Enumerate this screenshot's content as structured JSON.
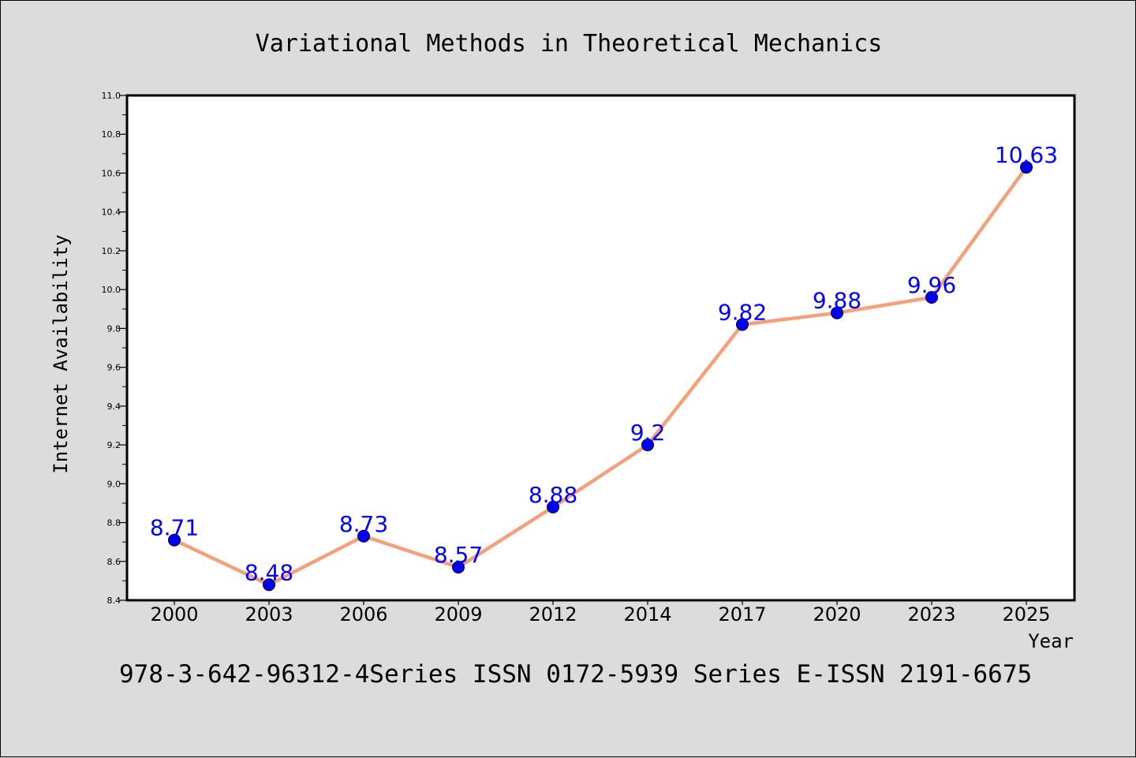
{
  "chart_data": {
    "type": "line",
    "title": "Variational Methods in Theoretical Mechanics",
    "xlabel": "Year",
    "ylabel": "Internet Availability",
    "categories": [
      "2000",
      "2003",
      "2006",
      "2009",
      "2012",
      "2014",
      "2017",
      "2020",
      "2023",
      "2025"
    ],
    "series": [
      {
        "values": [
          8.71,
          8.48,
          8.73,
          8.57,
          8.88,
          9.2,
          9.82,
          9.88,
          9.96,
          10.63
        ]
      }
    ],
    "data_labels": [
      "8.71",
      "8.48",
      "8.73",
      "8.57",
      "8.88",
      "9.2",
      "9.82",
      "9.88",
      "9.96",
      "10.63"
    ],
    "ylim": [
      8.4,
      11.0
    ],
    "ytick_labels": [
      "8.4",
      "8.6",
      "8.8",
      "9.0",
      "9.2",
      "9.4",
      "9.6",
      "9.8",
      "10.0",
      "10.2",
      "10.4",
      "10.6",
      "10.8",
      "11.0"
    ],
    "yticks": [
      8.4,
      8.6,
      8.8,
      9.0,
      9.2,
      9.4,
      9.6,
      9.8,
      10.0,
      10.2,
      10.4,
      10.6,
      10.8,
      11.0
    ],
    "grid": false,
    "legend": "none",
    "colors": {
      "line": "#f4a07a",
      "marker": "#0000ee",
      "marker_edge": "#000033",
      "label": "#0000ff",
      "background": "#dcdcdc",
      "plot_bg": "#ffffff"
    }
  },
  "footer": {
    "text": "978-3-642-96312-4Series ISSN 0172-5939 Series E-ISSN 2191-6675"
  }
}
